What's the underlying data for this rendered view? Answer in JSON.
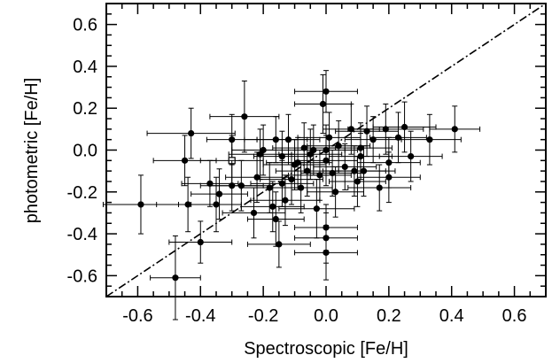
{
  "chart_data": {
    "type": "scatter",
    "xlabel": "Spectroscopic [Fe/H]",
    "ylabel": "photometric [Fe/H]",
    "xlim": [
      -0.7,
      0.7
    ],
    "ylim": [
      -0.7,
      0.7
    ],
    "x_ticks": [
      "-0.6",
      "-0.4",
      "-0.2",
      "0.0",
      "0.2",
      "0.4",
      "0.6"
    ],
    "y_ticks": [
      "-0.6",
      "-0.4",
      "-0.2",
      "0.0",
      "0.2",
      "0.4",
      "0.6"
    ],
    "x_tick_values": [
      -0.6,
      -0.4,
      -0.2,
      0.0,
      0.2,
      0.4,
      0.6
    ],
    "y_tick_values": [
      -0.6,
      -0.4,
      -0.2,
      0.0,
      0.2,
      0.4,
      0.6
    ],
    "reference_line": {
      "style": "dash-dot",
      "relation": "y = x"
    },
    "points": [
      {
        "x": -0.59,
        "y": -0.26,
        "xerr": 0.12,
        "yerr": 0.14
      },
      {
        "x": -0.48,
        "y": -0.61,
        "xerr": 0.08,
        "yerr": 0.2
      },
      {
        "x": -0.45,
        "y": -0.05,
        "xerr": 0.1,
        "yerr": 0.12
      },
      {
        "x": -0.44,
        "y": -0.26,
        "xerr": 0.1,
        "yerr": 0.13
      },
      {
        "x": -0.43,
        "y": 0.08,
        "xerr": 0.14,
        "yerr": 0.12
      },
      {
        "x": -0.4,
        "y": -0.44,
        "xerr": 0.1,
        "yerr": 0.1
      },
      {
        "x": -0.37,
        "y": -0.16,
        "xerr": 0.09,
        "yerr": 0.11
      },
      {
        "x": -0.35,
        "y": -0.26,
        "xerr": 0.08,
        "yerr": 0.13
      },
      {
        "x": -0.34,
        "y": -0.21,
        "xerr": 0.09,
        "yerr": 0.12
      },
      {
        "x": -0.3,
        "y": 0.05,
        "xerr": 0.08,
        "yerr": 0.12
      },
      {
        "x": -0.3,
        "y": -0.05,
        "xerr": 0.1,
        "yerr": 0.12,
        "marker": "open"
      },
      {
        "x": -0.3,
        "y": -0.17,
        "xerr": 0.1,
        "yerr": 0.12
      },
      {
        "x": -0.27,
        "y": -0.17,
        "xerr": 0.1,
        "yerr": 0.12
      },
      {
        "x": -0.26,
        "y": 0.16,
        "xerr": 0.11,
        "yerr": 0.17
      },
      {
        "x": -0.23,
        "y": -0.3,
        "xerr": 0.1,
        "yerr": 0.12
      },
      {
        "x": -0.22,
        "y": -0.13,
        "xerr": 0.1,
        "yerr": 0.12
      },
      {
        "x": -0.21,
        "y": -0.02,
        "xerr": 0.1,
        "yerr": 0.12
      },
      {
        "x": -0.2,
        "y": 0.0,
        "xerr": 0.1,
        "yerr": 0.12
      },
      {
        "x": -0.18,
        "y": -0.18,
        "xerr": 0.09,
        "yerr": 0.12
      },
      {
        "x": -0.17,
        "y": -0.27,
        "xerr": 0.1,
        "yerr": 0.12
      },
      {
        "x": -0.16,
        "y": 0.05,
        "xerr": 0.1,
        "yerr": 0.11
      },
      {
        "x": -0.16,
        "y": -0.33,
        "xerr": 0.09,
        "yerr": 0.13
      },
      {
        "x": -0.15,
        "y": -0.45,
        "xerr": 0.1,
        "yerr": 0.11
      },
      {
        "x": -0.14,
        "y": -0.16,
        "xerr": 0.1,
        "yerr": 0.11
      },
      {
        "x": -0.14,
        "y": -0.03,
        "xerr": 0.09,
        "yerr": 0.12
      },
      {
        "x": -0.13,
        "y": -0.24,
        "xerr": 0.11,
        "yerr": 0.12
      },
      {
        "x": -0.12,
        "y": 0.05,
        "xerr": 0.1,
        "yerr": 0.12
      },
      {
        "x": -0.11,
        "y": -0.14,
        "xerr": 0.1,
        "yerr": 0.12
      },
      {
        "x": -0.1,
        "y": -0.07,
        "xerr": 0.1,
        "yerr": 0.12
      },
      {
        "x": -0.09,
        "y": -0.06,
        "xerr": 0.1,
        "yerr": 0.12
      },
      {
        "x": -0.08,
        "y": -0.18,
        "xerr": 0.1,
        "yerr": 0.12
      },
      {
        "x": -0.07,
        "y": 0.01,
        "xerr": 0.1,
        "yerr": 0.12
      },
      {
        "x": -0.06,
        "y": -0.1,
        "xerr": 0.1,
        "yerr": 0.12
      },
      {
        "x": -0.05,
        "y": -0.02,
        "xerr": 0.1,
        "yerr": 0.12
      },
      {
        "x": -0.04,
        "y": 0.0,
        "xerr": 0.1,
        "yerr": 0.12
      },
      {
        "x": -0.03,
        "y": -0.28,
        "xerr": 0.12,
        "yerr": 0.14
      },
      {
        "x": -0.02,
        "y": -0.12,
        "xerr": 0.1,
        "yerr": 0.12
      },
      {
        "x": -0.01,
        "y": 0.22,
        "xerr": 0.09,
        "yerr": 0.14
      },
      {
        "x": 0.0,
        "y": 0.28,
        "xerr": 0.1,
        "yerr": 0.1
      },
      {
        "x": 0.0,
        "y": 0.0,
        "xerr": 0.1,
        "yerr": 0.12
      },
      {
        "x": 0.0,
        "y": -0.05,
        "xerr": 0.1,
        "yerr": 0.12
      },
      {
        "x": 0.0,
        "y": -0.37,
        "xerr": 0.1,
        "yerr": 0.11
      },
      {
        "x": 0.0,
        "y": -0.42,
        "xerr": 0.1,
        "yerr": 0.12
      },
      {
        "x": 0.0,
        "y": -0.49,
        "xerr": 0.1,
        "yerr": 0.13
      },
      {
        "x": 0.01,
        "y": 0.06,
        "xerr": 0.1,
        "yerr": 0.12
      },
      {
        "x": 0.02,
        "y": -0.11,
        "xerr": 0.1,
        "yerr": 0.11
      },
      {
        "x": 0.03,
        "y": -0.2,
        "xerr": 0.09,
        "yerr": 0.12
      },
      {
        "x": 0.04,
        "y": 0.02,
        "xerr": 0.1,
        "yerr": 0.12
      },
      {
        "x": 0.06,
        "y": -0.08,
        "xerr": 0.1,
        "yerr": 0.11
      },
      {
        "x": 0.08,
        "y": 0.1,
        "xerr": 0.09,
        "yerr": 0.12
      },
      {
        "x": 0.09,
        "y": -0.1,
        "xerr": 0.1,
        "yerr": 0.12
      },
      {
        "x": 0.1,
        "y": -0.15,
        "xerr": 0.09,
        "yerr": 0.12
      },
      {
        "x": 0.11,
        "y": -0.03,
        "xerr": 0.1,
        "yerr": 0.11
      },
      {
        "x": 0.11,
        "y": 0.01,
        "xerr": 0.1,
        "yerr": 0.12
      },
      {
        "x": 0.12,
        "y": -0.1,
        "xerr": 0.1,
        "yerr": 0.12
      },
      {
        "x": 0.13,
        "y": 0.09,
        "xerr": 0.1,
        "yerr": 0.12
      },
      {
        "x": 0.15,
        "y": 0.05,
        "xerr": 0.09,
        "yerr": 0.11
      },
      {
        "x": 0.17,
        "y": -0.18,
        "xerr": 0.1,
        "yerr": 0.11
      },
      {
        "x": 0.19,
        "y": 0.1,
        "xerr": 0.12,
        "yerr": 0.12
      },
      {
        "x": 0.2,
        "y": -0.06,
        "xerr": 0.1,
        "yerr": 0.12
      },
      {
        "x": 0.2,
        "y": -0.13,
        "xerr": 0.1,
        "yerr": 0.12
      },
      {
        "x": 0.23,
        "y": 0.06,
        "xerr": 0.09,
        "yerr": 0.12
      },
      {
        "x": 0.25,
        "y": 0.11,
        "xerr": 0.1,
        "yerr": 0.12
      },
      {
        "x": 0.27,
        "y": -0.03,
        "xerr": 0.1,
        "yerr": 0.12
      },
      {
        "x": 0.33,
        "y": 0.05,
        "xerr": 0.1,
        "yerr": 0.12
      },
      {
        "x": 0.41,
        "y": 0.1,
        "xerr": 0.08,
        "yerr": 0.11
      }
    ]
  }
}
